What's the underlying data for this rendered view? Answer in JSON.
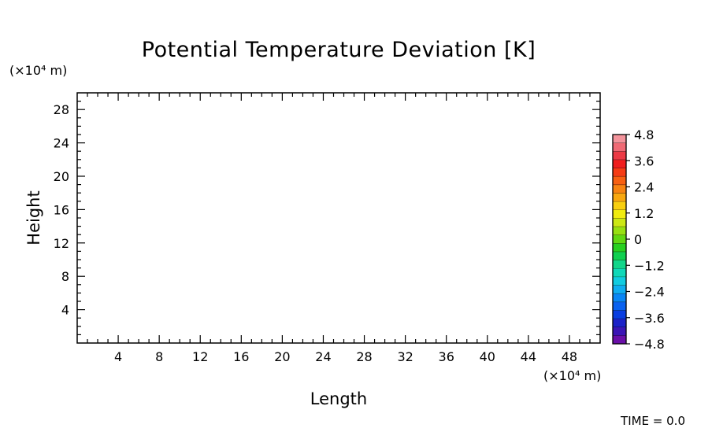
{
  "chart_data": {
    "type": "heatmap",
    "title": "Potential Temperature Deviation [K]",
    "xlabel": "Length",
    "ylabel": "Height",
    "x_unit": "(×10⁴ m)",
    "y_unit": "(×10⁴ m)",
    "xlim": [
      0,
      51
    ],
    "ylim": [
      0,
      30
    ],
    "x_ticks": [
      4,
      8,
      12,
      16,
      20,
      24,
      28,
      32,
      36,
      40,
      44,
      48
    ],
    "y_ticks": [
      4,
      8,
      12,
      16,
      20,
      24,
      28
    ],
    "values": [],
    "grid": false,
    "colorbar": {
      "min": -4.8,
      "max": 4.8,
      "ticks": [
        {
          "value": 4.8,
          "label": "4.8"
        },
        {
          "value": 3.6,
          "label": "3.6"
        },
        {
          "value": 2.4,
          "label": "2.4"
        },
        {
          "value": 1.2,
          "label": "1.2"
        },
        {
          "value": 0,
          "label": "0"
        },
        {
          "value": -1.2,
          "label": "−1.2"
        },
        {
          "value": -2.4,
          "label": "−2.4"
        },
        {
          "value": -3.6,
          "label": "−3.6"
        },
        {
          "value": -4.8,
          "label": "−4.8"
        }
      ],
      "colors": [
        "#6a0fa8",
        "#3b15b5",
        "#1c22c8",
        "#0a3ee0",
        "#0a62f0",
        "#0a86f5",
        "#10aef0",
        "#12cce0",
        "#10d8b8",
        "#12d58a",
        "#10d050",
        "#28d020",
        "#62d812",
        "#98e012",
        "#cce815",
        "#f0ec10",
        "#f8cf10",
        "#f8a810",
        "#f88412",
        "#f86012",
        "#f63c15",
        "#f01e1e",
        "#ec3a45",
        "#f06a75",
        "#f4949c"
      ]
    },
    "annotation": "TIME = 0.0"
  }
}
